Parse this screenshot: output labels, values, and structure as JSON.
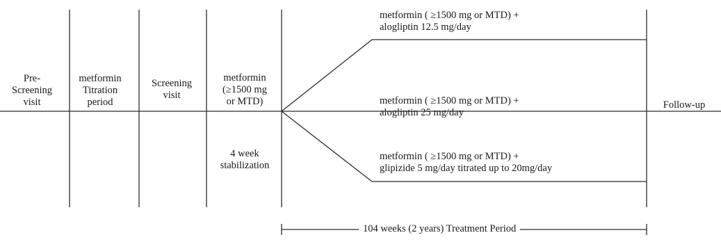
{
  "phases": {
    "prescreening": {
      "line1": "Pre-",
      "line2": "Screening",
      "line3": "visit"
    },
    "titration": {
      "line1": "metformin",
      "line2": "Titration",
      "line3": "period"
    },
    "screening": {
      "line1": "Screening",
      "line2": "visit"
    },
    "stabilization": {
      "line1": "metformin",
      "line2": "(≥1500 mg",
      "line3": "or MTD)",
      "duration1": "4 week",
      "duration2": "stabilization"
    },
    "followup": {
      "label": "Follow-up"
    }
  },
  "arms": [
    {
      "line1": "metformin ( ≥1500 mg or MTD) +",
      "line2": "alogliptin 12.5 mg/day"
    },
    {
      "line1": "metformin ( ≥1500 mg or MTD) +",
      "line2": "alogliptin 25 mg/day"
    },
    {
      "line1": "metformin ( ≥1500 mg or MTD) +",
      "line2": "glipizide 5 mg/day titrated up to 20mg/day"
    }
  ],
  "treatment_period": {
    "label": "104 weeks (2 years) Treatment Period"
  }
}
